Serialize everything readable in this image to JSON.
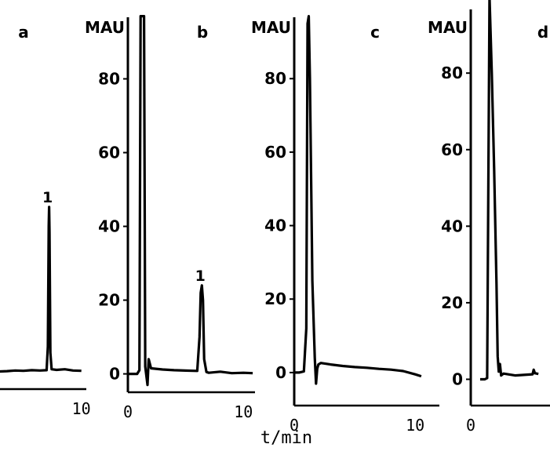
{
  "figure": {
    "xlabel": "t/min"
  },
  "chart_data": [
    {
      "type": "line",
      "panel_label": "a",
      "ylabel": "",
      "ylim": [
        -2,
        95
      ],
      "xlim": [
        -0.6,
        10.6
      ],
      "x_ticks": [
        "",
        "10"
      ],
      "y_ticks": [],
      "peaks": [
        {
          "label": "1",
          "x": 6.1,
          "y": 52
        }
      ],
      "series": [
        {
          "x": [
            -0.6,
            1,
            2,
            3,
            4,
            5,
            5.8,
            5.95,
            6.05,
            6.1,
            6.15,
            6.25,
            6.4,
            7,
            8,
            9,
            10
          ],
          "y": [
            0,
            0.2,
            0.4,
            0.3,
            0.5,
            0.4,
            0.5,
            8,
            46,
            52,
            44,
            6,
            0.8,
            0.6,
            0.8,
            0.4,
            0.3
          ]
        }
      ]
    },
    {
      "type": "line",
      "panel_label": "b",
      "ylabel": "MAU",
      "ylim": [
        -2,
        95
      ],
      "xlim": [
        0,
        11
      ],
      "x_ticks": [
        "0",
        "10"
      ],
      "y_ticks": [
        "0",
        "20",
        "40",
        "60",
        "80"
      ],
      "peaks": [
        {
          "label": "1",
          "x": 6.4,
          "y": 24
        }
      ],
      "series": [
        {
          "x": [
            0,
            0.8,
            1.0,
            1.1,
            1.2,
            1.3,
            1.4,
            1.5,
            1.7,
            1.8,
            2.0,
            3,
            4,
            5,
            6,
            6.2,
            6.3,
            6.4,
            6.5,
            6.6,
            6.8,
            7,
            8,
            9,
            10,
            10.8
          ],
          "y": [
            0,
            0,
            1,
            97,
            97,
            97,
            97,
            2,
            -3,
            4,
            1.5,
            1.2,
            1.0,
            0.9,
            0.8,
            10,
            22,
            24,
            20,
            4,
            0.5,
            0.3,
            0.6,
            0.2,
            0.3,
            0.2
          ]
        }
      ]
    },
    {
      "type": "line",
      "panel_label": "c",
      "ylabel": "MAU",
      "ylim": [
        -6,
        95
      ],
      "xlim": [
        0,
        12
      ],
      "x_ticks": [
        "0",
        "10"
      ],
      "y_ticks": [
        "0",
        "20",
        "40",
        "60",
        "80"
      ],
      "peaks": [],
      "series": [
        {
          "x": [
            0,
            0.4,
            0.8,
            1.0,
            1.1,
            1.2,
            1.3,
            1.5,
            1.7,
            1.8,
            1.9,
            2.0,
            2.2,
            3,
            4,
            5,
            6,
            7,
            8,
            9,
            10,
            10.5
          ],
          "y": [
            0,
            0,
            0.3,
            12,
            95,
            97,
            80,
            25,
            4,
            -3,
            1,
            2.2,
            2.6,
            2.2,
            1.8,
            1.5,
            1.3,
            1.0,
            0.8,
            0.4,
            -0.5,
            -1
          ]
        }
      ]
    },
    {
      "type": "line",
      "panel_label": "d",
      "ylabel": "MAU",
      "ylim": [
        -4,
        95
      ],
      "xlim": [
        0,
        6
      ],
      "x_ticks": [
        "0",
        ""
      ],
      "y_ticks": [
        "0",
        "20",
        "40",
        "60",
        "80"
      ],
      "peaks": [],
      "series": [
        {
          "x": [
            0,
            0.4,
            0.6,
            0.8,
            1.0,
            1.2,
            1.4,
            1.5,
            1.6,
            1.7,
            1.8,
            2.0,
            3,
            4,
            4.5,
            4.6,
            4.7,
            5
          ],
          "y": [
            0,
            0,
            0.3,
            100,
            80,
            55,
            25,
            6,
            2,
            4,
            1,
            1.5,
            1.0,
            1.2,
            1.3,
            2.5,
            1.6,
            1.4
          ]
        }
      ]
    }
  ]
}
